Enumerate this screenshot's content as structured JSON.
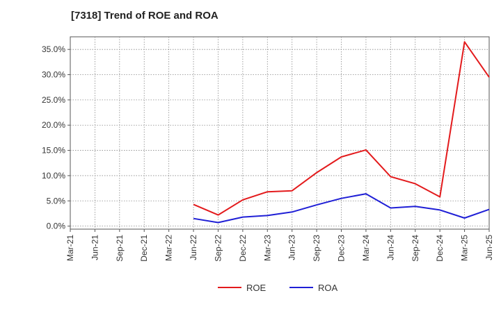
{
  "chart_data": {
    "type": "line",
    "title": "[7318]  Trend of ROE and ROA",
    "xlabel": "",
    "ylabel": "",
    "x": [
      "Mar-21",
      "Jun-21",
      "Sep-21",
      "Dec-21",
      "Mar-22",
      "Jun-22",
      "Sep-22",
      "Dec-22",
      "Mar-23",
      "Jun-23",
      "Sep-23",
      "Dec-23",
      "Mar-24",
      "Jun-24",
      "Sep-24",
      "Dec-24",
      "Mar-25",
      "Jun-25"
    ],
    "ylim": [
      -0.6,
      37.5
    ],
    "yticks": [
      0,
      5,
      10,
      15,
      20,
      25,
      30,
      35
    ],
    "ytick_labels": [
      "0.0%",
      "5.0%",
      "10.0%",
      "15.0%",
      "20.0%",
      "25.0%",
      "30.0%",
      "35.0%"
    ],
    "grid": true,
    "legend_position": "bottom-center",
    "series": [
      {
        "name": "ROE",
        "color": "#e31a1c",
        "values": [
          null,
          null,
          null,
          null,
          null,
          4.3,
          2.2,
          5.2,
          6.8,
          7.0,
          10.6,
          13.7,
          15.1,
          9.8,
          8.4,
          5.8,
          36.5,
          29.5
        ]
      },
      {
        "name": "ROA",
        "color": "#1f1fd6",
        "values": [
          null,
          null,
          null,
          null,
          null,
          1.5,
          0.7,
          1.8,
          2.1,
          2.8,
          4.2,
          5.5,
          6.4,
          3.6,
          3.9,
          3.2,
          1.6,
          3.3
        ]
      }
    ]
  }
}
